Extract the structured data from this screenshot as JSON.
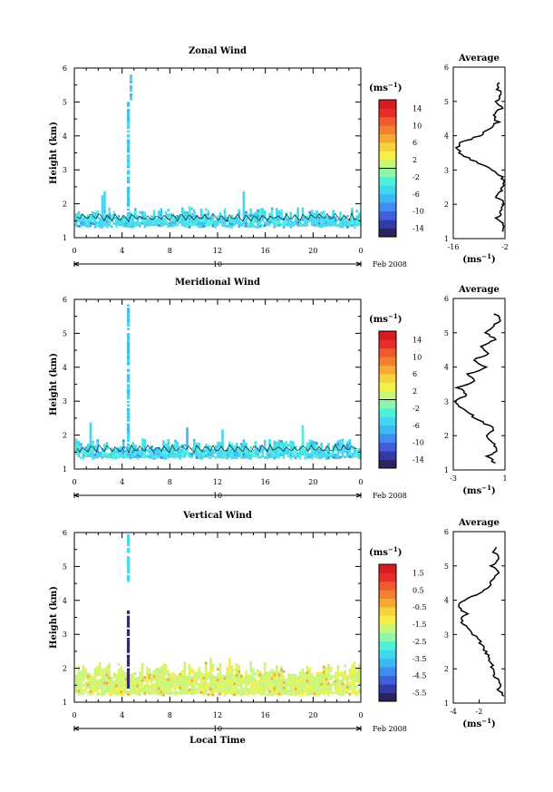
{
  "figure": {
    "x_axis_label": "Local Time",
    "date_label": "Feb 2008",
    "day_label": "10",
    "unit": "(ms",
    "unit_sup": "−1",
    "unit_close": ")",
    "average_title": "Average"
  },
  "chart_data": [
    {
      "type": "heatmap",
      "title": "Zonal Wind",
      "ylabel": "Height (km)",
      "xlabel": "",
      "xlim": [
        0,
        24
      ],
      "ylim": [
        1,
        6
      ],
      "xticks": [
        "0",
        "4",
        "8",
        "12",
        "16",
        "20",
        "0"
      ],
      "yticks": [
        "1",
        "2",
        "3",
        "4",
        "5",
        "6"
      ],
      "colorbar": {
        "ticks": [
          "14",
          "10",
          "6",
          "2",
          "-2",
          "-6",
          "-10",
          "-14"
        ],
        "range": [
          -16,
          16
        ],
        "colors": [
          "#2a2460",
          "#3339a8",
          "#3f5ee0",
          "#3d8ef0",
          "#3eb7f2",
          "#40d8ee",
          "#4ff0d8",
          "#8ff5a8",
          "#c9f577",
          "#f5f046",
          "#f8d23a",
          "#f7a935",
          "#f57f30",
          "#f05a2c",
          "#e63027",
          "#d91a22"
        ]
      },
      "average_profile": {
        "xlim": [
          -16,
          -2
        ],
        "xticks": [
          "-16",
          "-2"
        ],
        "xlabel": "(ms",
        "heights": [
          1.2,
          1.4,
          1.6,
          1.8,
          2.0,
          2.2,
          2.4,
          2.6,
          2.8,
          3.0,
          3.2,
          3.4,
          3.6,
          3.8,
          4.0,
          4.2,
          4.4,
          4.6,
          4.8,
          5.0,
          5.2,
          5.4,
          5.6
        ],
        "values": [
          -3,
          -2,
          -4,
          -3,
          -2,
          -4,
          -3,
          -2,
          -3,
          -5,
          -9,
          -13,
          -15,
          -14,
          -9,
          -6,
          -4,
          -5,
          -3,
          -4,
          -3,
          -4,
          -3
        ]
      }
    },
    {
      "type": "heatmap",
      "title": "Meridional Wind",
      "ylabel": "Height (km)",
      "xlabel": "",
      "xlim": [
        0,
        24
      ],
      "ylim": [
        1,
        6
      ],
      "xticks": [
        "0",
        "4",
        "8",
        "12",
        "16",
        "20",
        "0"
      ],
      "yticks": [
        "1",
        "2",
        "3",
        "4",
        "5",
        "6"
      ],
      "colorbar": {
        "ticks": [
          "14",
          "10",
          "6",
          "2",
          "-2",
          "-6",
          "-10",
          "-14"
        ],
        "range": [
          -16,
          16
        ],
        "colors": [
          "#2a2460",
          "#3339a8",
          "#3f5ee0",
          "#3d8ef0",
          "#3eb7f2",
          "#40d8ee",
          "#4ff0d8",
          "#8ff5a8",
          "#c9f577",
          "#f5f046",
          "#f8d23a",
          "#f7a935",
          "#f57f30",
          "#f05a2c",
          "#e63027",
          "#d91a22"
        ]
      },
      "average_profile": {
        "xlim": [
          -3,
          1
        ],
        "xticks": [
          "-3",
          "1"
        ],
        "xlabel": "(ms",
        "heights": [
          1.2,
          1.4,
          1.6,
          1.8,
          2.0,
          2.2,
          2.4,
          2.6,
          2.8,
          3.0,
          3.2,
          3.4,
          3.6,
          3.8,
          4.0,
          4.2,
          4.4,
          4.6,
          4.8,
          5.0,
          5.2,
          5.4,
          5.6
        ],
        "values": [
          0.2,
          -0.3,
          0.4,
          0.1,
          -0.5,
          0.2,
          -0.8,
          -1.6,
          -2.4,
          -2.8,
          -2.0,
          -2.6,
          -1.2,
          -1.8,
          -0.4,
          -1.5,
          -0.2,
          -0.9,
          0.3,
          -0.6,
          0.2,
          0.6,
          0.1
        ]
      }
    },
    {
      "type": "heatmap",
      "title": "Vertical Wind",
      "ylabel": "Height (km)",
      "xlabel": "Local Time",
      "xlim": [
        0,
        24
      ],
      "ylim": [
        1,
        6
      ],
      "xticks": [
        "0",
        "4",
        "8",
        "12",
        "16",
        "20",
        "0"
      ],
      "yticks": [
        "1",
        "2",
        "3",
        "4",
        "5",
        "6"
      ],
      "colorbar": {
        "ticks": [
          "1.5",
          "0.5",
          "-0.5",
          "-1.5",
          "-2.5",
          "-3.5",
          "-4.5",
          "-5.5"
        ],
        "range": [
          -6,
          2
        ],
        "colors": [
          "#2a2460",
          "#3339a8",
          "#3f5ee0",
          "#3d8ef0",
          "#3eb7f2",
          "#40d8ee",
          "#4ff0d8",
          "#8ff5a8",
          "#c9f577",
          "#f5f046",
          "#f8d23a",
          "#f7a935",
          "#f57f30",
          "#f05a2c",
          "#e63027",
          "#d91a22"
        ]
      },
      "average_profile": {
        "xlim": [
          -4,
          0
        ],
        "xticks": [
          "-4",
          "-2"
        ],
        "xlabel": "(ms",
        "heights": [
          1.2,
          1.4,
          1.6,
          1.8,
          2.0,
          2.2,
          2.4,
          2.6,
          2.8,
          3.0,
          3.2,
          3.4,
          3.6,
          3.8,
          4.0,
          4.2,
          4.4,
          4.6,
          4.8,
          5.0,
          5.2,
          5.4,
          5.6
        ],
        "values": [
          -0.2,
          -0.5,
          -0.4,
          -0.8,
          -1.0,
          -1.1,
          -1.3,
          -1.6,
          -2.0,
          -2.4,
          -3.0,
          -3.4,
          -3.0,
          -3.6,
          -3.2,
          -1.8,
          -1.2,
          -0.9,
          -0.6,
          -1.0,
          -0.4,
          -0.9,
          -0.5
        ]
      }
    }
  ]
}
